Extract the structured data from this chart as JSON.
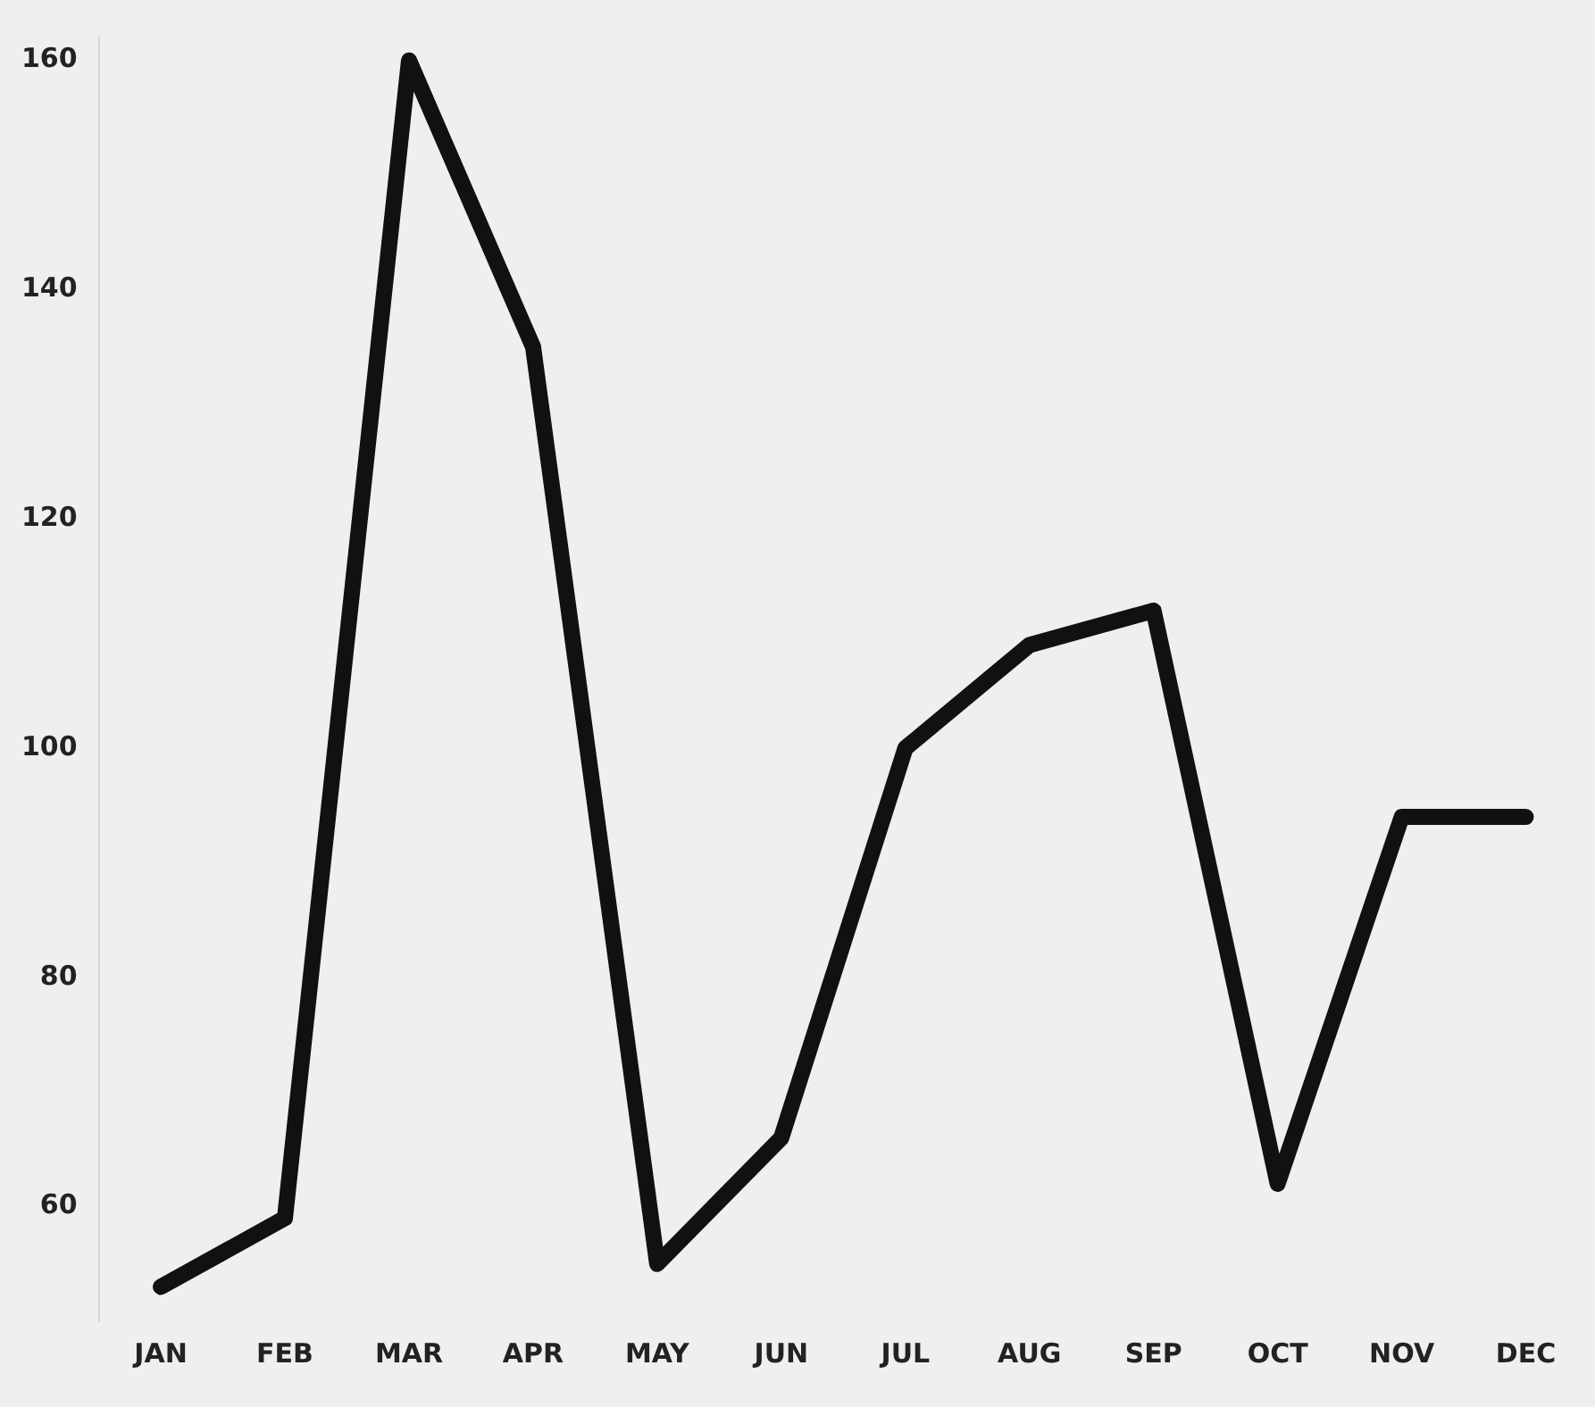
{
  "chart_data": {
    "type": "line",
    "categories": [
      "JAN",
      "FEB",
      "MAR",
      "APR",
      "MAY",
      "JUN",
      "JUL",
      "AUG",
      "SEP",
      "OCT",
      "NOV",
      "DEC"
    ],
    "series": [
      {
        "color": "#111111",
        "values": [
          53,
          59,
          160,
          135,
          55,
          66,
          100,
          109,
          112,
          62,
          94,
          94
        ]
      }
    ],
    "ylim": [
      50,
      162
    ],
    "yticks": [
      60,
      80,
      100,
      120,
      140,
      160
    ],
    "grid": false,
    "legend": false,
    "marker": "none",
    "line_style": "solid"
  }
}
